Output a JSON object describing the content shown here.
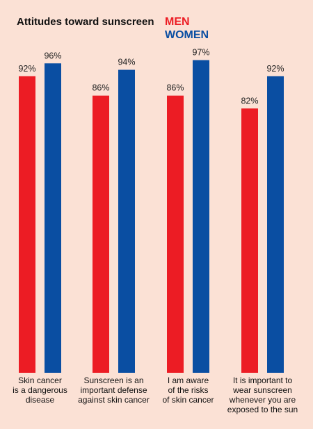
{
  "chart_data": {
    "type": "bar",
    "title": "Attitudes toward sunscreen",
    "categories": [
      [
        "Skin cancer",
        "is a dangerous",
        "disease"
      ],
      [
        "Sunscreen is an",
        "important defense",
        "against skin cancer"
      ],
      [
        "I am aware",
        "of the risks",
        "of skin cancer"
      ],
      [
        "It is important to",
        "wear sunscreen",
        "whenever you are",
        "exposed to the sun"
      ]
    ],
    "series": [
      {
        "name": "MEN",
        "color": "#ec1c24",
        "values": [
          92,
          86,
          86,
          82
        ],
        "labels": [
          "92%",
          "86%",
          "86%",
          "82%"
        ]
      },
      {
        "name": "WOMEN",
        "color": "#0a4ea2",
        "values": [
          96,
          94,
          97,
          92
        ],
        "labels": [
          "96%",
          "94%",
          "97%",
          "92%"
        ]
      }
    ],
    "ylim": [
      0,
      100
    ],
    "legend_position": "top-right",
    "grid": false
  }
}
